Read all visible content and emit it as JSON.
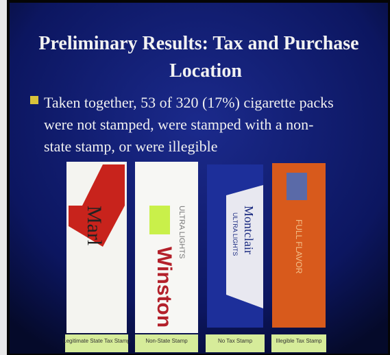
{
  "slide": {
    "title": [
      "Preliminary Results: Tax and Purchase",
      "Location"
    ],
    "bullet": [
      "Taken together, 53 of 320 (17%) cigarette packs",
      "were not stamped, were stamped with a non-",
      "state stamp, or were illegible"
    ],
    "packs": [
      {
        "brand": "Marl",
        "caption": "Legitimate State Tax Stamp"
      },
      {
        "brand": "Winston",
        "sub": "ULTRA LIGHTS",
        "caption": "Non-State Stamp"
      },
      {
        "brand": "Montclair",
        "sub": "ULTRA LIGHTS",
        "caption": "No Tax Stamp"
      },
      {
        "brand": "FULL FLAVOR",
        "caption": "Illegible Tax Stamp"
      }
    ]
  }
}
